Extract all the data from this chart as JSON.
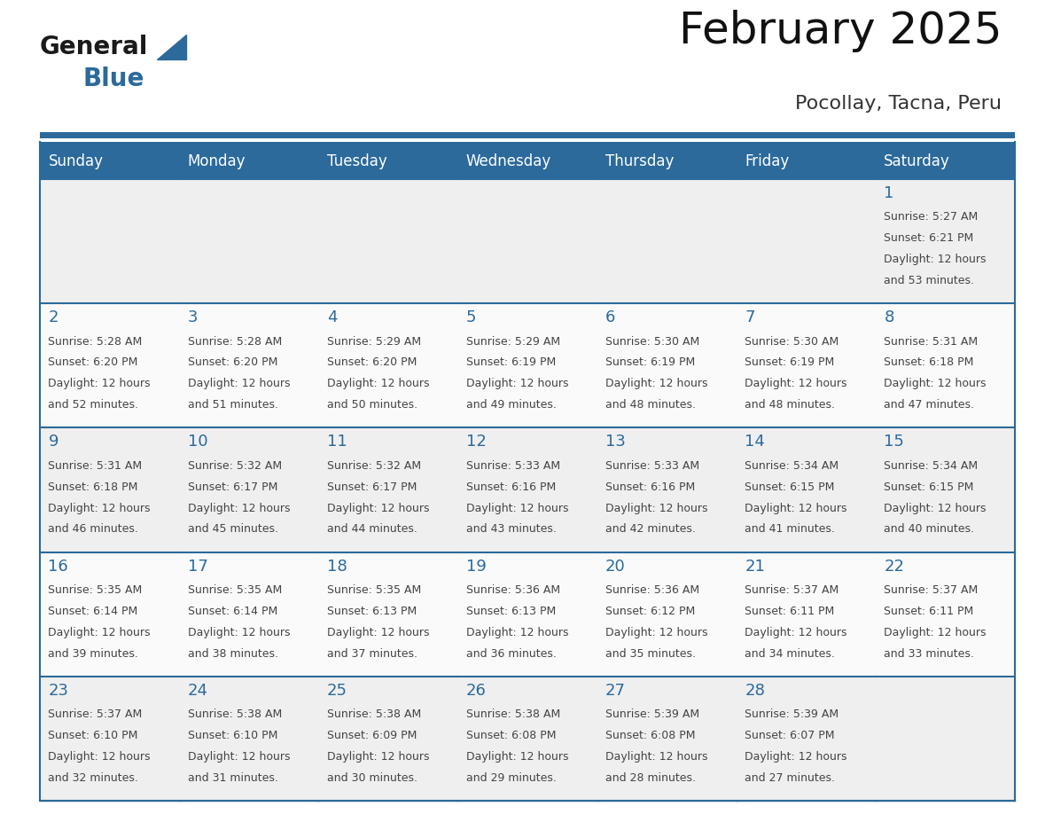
{
  "title": "February 2025",
  "subtitle": "Pocollay, Tacna, Peru",
  "header_bg": "#2B6A9B",
  "header_text_color": "#FFFFFF",
  "border_color": "#2B6A9B",
  "day_number_color": "#2B6A9B",
  "text_color": "#444444",
  "cell_bg_odd": "#EFEFEF",
  "cell_bg_even": "#FAFAFA",
  "days_of_week": [
    "Sunday",
    "Monday",
    "Tuesday",
    "Wednesday",
    "Thursday",
    "Friday",
    "Saturday"
  ],
  "calendar_data": [
    [
      null,
      null,
      null,
      null,
      null,
      null,
      {
        "day": "1",
        "sunrise": "5:27 AM",
        "sunset": "6:21 PM",
        "daylight": "12 hours and 53 minutes."
      }
    ],
    [
      {
        "day": "2",
        "sunrise": "5:28 AM",
        "sunset": "6:20 PM",
        "daylight": "12 hours and 52 minutes."
      },
      {
        "day": "3",
        "sunrise": "5:28 AM",
        "sunset": "6:20 PM",
        "daylight": "12 hours and 51 minutes."
      },
      {
        "day": "4",
        "sunrise": "5:29 AM",
        "sunset": "6:20 PM",
        "daylight": "12 hours and 50 minutes."
      },
      {
        "day": "5",
        "sunrise": "5:29 AM",
        "sunset": "6:19 PM",
        "daylight": "12 hours and 49 minutes."
      },
      {
        "day": "6",
        "sunrise": "5:30 AM",
        "sunset": "6:19 PM",
        "daylight": "12 hours and 48 minutes."
      },
      {
        "day": "7",
        "sunrise": "5:30 AM",
        "sunset": "6:19 PM",
        "daylight": "12 hours and 48 minutes."
      },
      {
        "day": "8",
        "sunrise": "5:31 AM",
        "sunset": "6:18 PM",
        "daylight": "12 hours and 47 minutes."
      }
    ],
    [
      {
        "day": "9",
        "sunrise": "5:31 AM",
        "sunset": "6:18 PM",
        "daylight": "12 hours and 46 minutes."
      },
      {
        "day": "10",
        "sunrise": "5:32 AM",
        "sunset": "6:17 PM",
        "daylight": "12 hours and 45 minutes."
      },
      {
        "day": "11",
        "sunrise": "5:32 AM",
        "sunset": "6:17 PM",
        "daylight": "12 hours and 44 minutes."
      },
      {
        "day": "12",
        "sunrise": "5:33 AM",
        "sunset": "6:16 PM",
        "daylight": "12 hours and 43 minutes."
      },
      {
        "day": "13",
        "sunrise": "5:33 AM",
        "sunset": "6:16 PM",
        "daylight": "12 hours and 42 minutes."
      },
      {
        "day": "14",
        "sunrise": "5:34 AM",
        "sunset": "6:15 PM",
        "daylight": "12 hours and 41 minutes."
      },
      {
        "day": "15",
        "sunrise": "5:34 AM",
        "sunset": "6:15 PM",
        "daylight": "12 hours and 40 minutes."
      }
    ],
    [
      {
        "day": "16",
        "sunrise": "5:35 AM",
        "sunset": "6:14 PM",
        "daylight": "12 hours and 39 minutes."
      },
      {
        "day": "17",
        "sunrise": "5:35 AM",
        "sunset": "6:14 PM",
        "daylight": "12 hours and 38 minutes."
      },
      {
        "day": "18",
        "sunrise": "5:35 AM",
        "sunset": "6:13 PM",
        "daylight": "12 hours and 37 minutes."
      },
      {
        "day": "19",
        "sunrise": "5:36 AM",
        "sunset": "6:13 PM",
        "daylight": "12 hours and 36 minutes."
      },
      {
        "day": "20",
        "sunrise": "5:36 AM",
        "sunset": "6:12 PM",
        "daylight": "12 hours and 35 minutes."
      },
      {
        "day": "21",
        "sunrise": "5:37 AM",
        "sunset": "6:11 PM",
        "daylight": "12 hours and 34 minutes."
      },
      {
        "day": "22",
        "sunrise": "5:37 AM",
        "sunset": "6:11 PM",
        "daylight": "12 hours and 33 minutes."
      }
    ],
    [
      {
        "day": "23",
        "sunrise": "5:37 AM",
        "sunset": "6:10 PM",
        "daylight": "12 hours and 32 minutes."
      },
      {
        "day": "24",
        "sunrise": "5:38 AM",
        "sunset": "6:10 PM",
        "daylight": "12 hours and 31 minutes."
      },
      {
        "day": "25",
        "sunrise": "5:38 AM",
        "sunset": "6:09 PM",
        "daylight": "12 hours and 30 minutes."
      },
      {
        "day": "26",
        "sunrise": "5:38 AM",
        "sunset": "6:08 PM",
        "daylight": "12 hours and 29 minutes."
      },
      {
        "day": "27",
        "sunrise": "5:39 AM",
        "sunset": "6:08 PM",
        "daylight": "12 hours and 28 minutes."
      },
      {
        "day": "28",
        "sunrise": "5:39 AM",
        "sunset": "6:07 PM",
        "daylight": "12 hours and 27 minutes."
      },
      null
    ]
  ],
  "logo_general_color": "#1a1a1a",
  "logo_blue_color": "#2B6A9B",
  "logo_triangle_color": "#2B6A9B",
  "title_fontsize": 36,
  "subtitle_fontsize": 16,
  "header_fontsize": 12,
  "day_num_fontsize": 13,
  "cell_text_fontsize": 9
}
